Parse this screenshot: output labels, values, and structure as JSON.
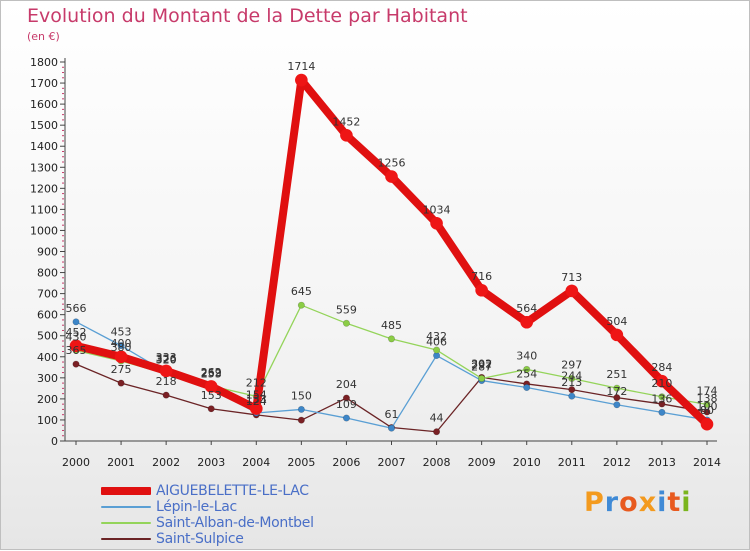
{
  "title": "Evolution du Montant de la Dette par Habitant",
  "subtitle": "(en €)",
  "brand": {
    "text": "Proxiti",
    "colors": [
      "#f39a1e",
      "#3f8ad6",
      "#e85a1f",
      "#f39a1e",
      "#3f8ad6",
      "#e85a1f",
      "#7ab51d"
    ]
  },
  "chart_data": {
    "type": "line",
    "title": "Evolution du Montant de la Dette par Habitant",
    "ylabel": "(en €)",
    "xlabel": "",
    "ylim": [
      0,
      1800
    ],
    "yticks": [
      0,
      100,
      200,
      300,
      400,
      500,
      600,
      700,
      800,
      900,
      1000,
      1100,
      1200,
      1300,
      1400,
      1500,
      1600,
      1700,
      1800
    ],
    "grid": false,
    "legend_position": "bottom-left",
    "categories": [
      "2000",
      "2001",
      "2002",
      "2003",
      "2004",
      "2005",
      "2006",
      "2007",
      "2008",
      "2009",
      "2010",
      "2011",
      "2012",
      "2013",
      "2014"
    ],
    "series": [
      {
        "name": "Saint-Sulpice",
        "color": "#6b2426",
        "markerColor": "#7a2024",
        "values": [
          365,
          275,
          218,
          153,
          124,
          99,
          204,
          64,
          44,
          302,
          271,
          244,
          206,
          176,
          138
        ],
        "labels": [
          "365",
          "275",
          "218",
          "153",
          "124",
          "",
          "204",
          "",
          "44",
          "302",
          "",
          "244",
          "",
          "",
          "138"
        ]
      },
      {
        "name": "Lépin-le-Lac",
        "color": "#5a9fd4",
        "markerColor": "#3d86c8",
        "values": [
          566,
          453,
          326,
          253,
          133,
          150,
          109,
          61,
          406,
          287,
          254,
          213,
          172,
          136,
          100
        ],
        "labels": [
          "566",
          "453",
          "326",
          "253",
          "133",
          "150",
          "109",
          "61",
          "406",
          "287",
          "254",
          "213",
          "172",
          "136",
          "100"
        ]
      },
      {
        "name": "Saint-Alban-de-Montbel",
        "color": "#94d45a",
        "markerColor": "#8bcd45",
        "values": [
          430,
          380,
          320,
          262,
          212,
          645,
          559,
          485,
          432,
          297,
          340,
          297,
          251,
          210,
          174
        ],
        "labels": [
          "430",
          "380",
          "320",
          "262",
          "212",
          "645",
          "559",
          "485",
          "432",
          "297",
          "340",
          "297",
          "251",
          "210",
          "174"
        ]
      },
      {
        "name": "AIGUEBELETTE-LE-LAC",
        "color": "#e01010",
        "markerColor": "#ee1515",
        "values": [
          452,
          400,
          333,
          259,
          154,
          1714,
          1452,
          1256,
          1034,
          716,
          564,
          713,
          504,
          284,
          80
        ],
        "labels": [
          "452",
          "400",
          "333",
          "259",
          "154",
          "1714",
          "1452",
          "1256",
          "1034",
          "716",
          "564",
          "713",
          "504",
          "284",
          "80"
        ]
      }
    ],
    "legend_order": [
      "AIGUEBELETTE-LE-LAC",
      "Lépin-le-Lac",
      "Saint-Alban-de-Montbel",
      "Saint-Sulpice"
    ]
  }
}
